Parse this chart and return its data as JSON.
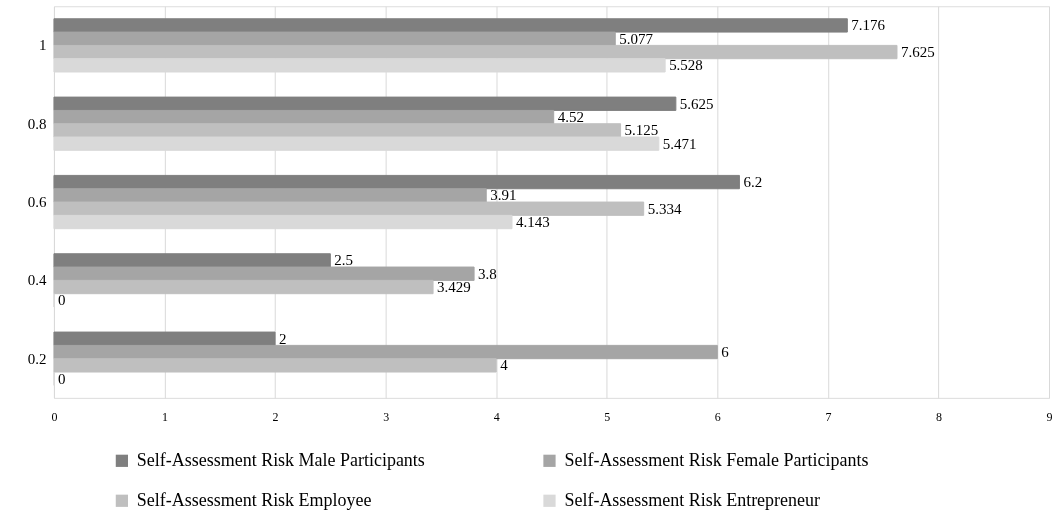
{
  "chart_data": {
    "type": "bar",
    "orientation": "horizontal",
    "categories": [
      "1",
      "0.8",
      "0.6",
      "0.4",
      "0.2"
    ],
    "series": [
      {
        "name": "Self-Assessment Risk Male Participants",
        "color": "#7f7f7f",
        "values": [
          7.176,
          5.625,
          6.2,
          2.5,
          2
        ]
      },
      {
        "name": "Self-Assessment Risk Female Participants",
        "color": "#a5a5a5",
        "values": [
          5.077,
          4.52,
          3.91,
          3.8,
          6
        ]
      },
      {
        "name": "Self-Assessment Risk Employee",
        "color": "#bfbfbf",
        "values": [
          7.625,
          5.125,
          5.334,
          3.429,
          4
        ]
      },
      {
        "name": "Self-Assessment Risk Entrepreneur",
        "color": "#d9d9d9",
        "values": [
          5.528,
          5.471,
          4.143,
          0,
          0
        ]
      }
    ],
    "xlim": [
      0,
      9
    ],
    "xticks": [
      0,
      1,
      2,
      3,
      4,
      5,
      6,
      7,
      8,
      9
    ],
    "grid": "x",
    "legend": "bottom",
    "data_labels": true
  }
}
